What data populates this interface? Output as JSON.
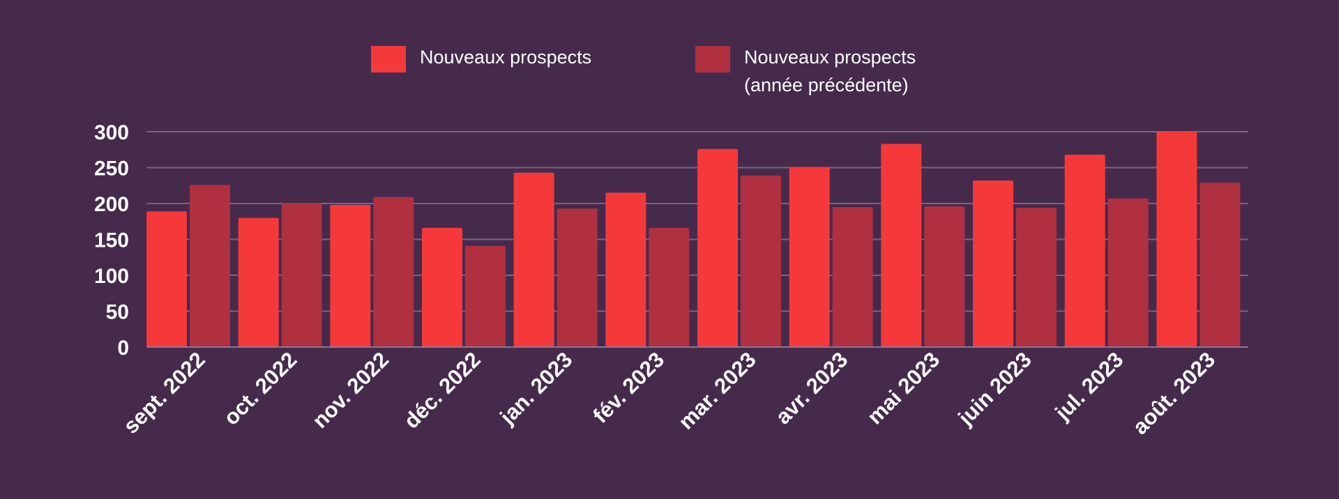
{
  "chart_data": {
    "type": "bar",
    "title": "",
    "xlabel": "",
    "ylabel": "",
    "categories": [
      "sept. 2022",
      "oct. 2022",
      "nov. 2022",
      "déc. 2022",
      "jan. 2023",
      "fév. 2023",
      "mar. 2023",
      "avr. 2023",
      "mai 2023",
      "juin 2023",
      "jul. 2023",
      "août. 2023"
    ],
    "series": [
      {
        "name": "Nouveaux prospects",
        "color": "#f5393b",
        "values": [
          189,
          180,
          198,
          166,
          243,
          215,
          276,
          251,
          283,
          232,
          268,
          300
        ]
      },
      {
        "name": "Nouveaux prospects (année précédente)",
        "color": "#b03040",
        "values": [
          226,
          201,
          209,
          141,
          193,
          166,
          239,
          195,
          196,
          194,
          207,
          229
        ]
      }
    ],
    "ylim": [
      0,
      300
    ],
    "yticks": [
      0,
      50,
      100,
      150,
      200,
      250,
      300
    ],
    "grid": true,
    "legend_position": "top-center"
  }
}
